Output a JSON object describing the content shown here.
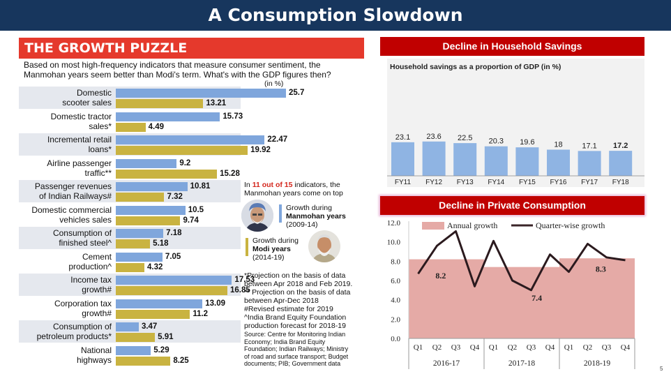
{
  "slide": {
    "title": "A Consumption Slowdown",
    "page_number": "5"
  },
  "colors": {
    "title_bg": "#17365d",
    "red_header": "#c00000",
    "puzzle_header": "#e5392c",
    "manmohan": "#7fa6dc",
    "modi": "#c9b341",
    "savings_bar": "#8fb4e3",
    "annual_area": "#e5aaa6"
  },
  "chart_data": [
    {
      "type": "bar",
      "title": "THE GROWTH PUZZLE",
      "subtitle": "Based on most high-frequency indicators that measure consumer sentiment, the Manmohan years seem better than Modi's term. What's with the GDP figures then?",
      "unit": "(in %)",
      "categories": [
        [
          "Domestic",
          "scooter sales"
        ],
        [
          "Domestic tractor",
          "sales*"
        ],
        [
          "Incremental retail",
          "loans*"
        ],
        [
          "Airline passenger",
          "traffic**"
        ],
        [
          "Passenger revenues",
          "of Indian Railways#"
        ],
        [
          "Domestic commercial",
          "vehicles sales"
        ],
        [
          "Consumption of",
          "finished steel^"
        ],
        [
          "Cement",
          "production^"
        ],
        [
          "Income tax",
          "growth#"
        ],
        [
          "Corporation tax",
          "growth#"
        ],
        [
          "Consumption of",
          "petroleum products*"
        ],
        [
          "National",
          "highways"
        ]
      ],
      "series": [
        {
          "name": "Growth during Manmohan years (2009-14)",
          "values": [
            25.7,
            15.73,
            22.47,
            9.2,
            10.81,
            10.5,
            7.18,
            7.05,
            17.53,
            13.09,
            3.47,
            5.29
          ],
          "labels": [
            "25.7",
            "15.73",
            "22.47",
            "9.2",
            "10.81",
            "10.5",
            "7.18",
            "7.05",
            "17.53",
            "13.09",
            "3.47",
            "5.29"
          ]
        },
        {
          "name": "Growth during Modi years (2014-19)",
          "values": [
            13.21,
            4.49,
            19.92,
            15.28,
            7.32,
            9.74,
            5.18,
            4.32,
            16.85,
            11.2,
            5.91,
            8.25
          ],
          "labels": [
            "13.21",
            "4.49",
            "19.92",
            "15.28",
            "7.32",
            "9.74",
            "5.18",
            "4.32",
            "16.85",
            "11.2",
            "5.91",
            "8.25"
          ]
        }
      ],
      "legend": [
        {
          "prefix": "Growth during",
          "name": "Manmohan years",
          "period": "(2009-14)"
        },
        {
          "prefix": "Growth during",
          "name": "Modi years",
          "period": "(2014-19)"
        }
      ],
      "callout": {
        "pre": "In ",
        "highlight": "11 out of 15",
        "post": " indicators, the",
        "line2": "Manmohan years come on top"
      },
      "footnotes": [
        "*Projection on the basis of data",
        "between Apr 2018 and Feb 2019.",
        "** Projection on the basis of data",
        "between Apr-Dec 2018",
        "#Revised estimate for 2019",
        "^India Brand Equity Foundation",
        "production forecast for 2018-19"
      ],
      "source": [
        "Source: Centre for Monitoring Indian",
        "Economy; India Brand Equity",
        "Foundation; Indian Railways; Ministry",
        "of road and surface transport; Budget",
        "documents; PIB; Government data"
      ],
      "xlim": [
        0,
        26
      ]
    },
    {
      "type": "bar",
      "header": "Decline in Household Savings",
      "title": "Household savings as a proportion of GDP (in %)",
      "categories": [
        "FY11",
        "FY12",
        "FY13",
        "FY14",
        "FY15",
        "FY16",
        "FY17",
        "FY18"
      ],
      "values": [
        23.1,
        23.6,
        22.5,
        20.3,
        19.6,
        18,
        17.1,
        17.2
      ],
      "labels": [
        "23.1",
        "23.6",
        "22.5",
        "20.3",
        "19.6",
        "18",
        "17.1",
        "17.2"
      ],
      "ylim": [
        0,
        24
      ]
    },
    {
      "type": "line",
      "header": "Decline in Private Consumption",
      "legend": [
        "Annual growth",
        "Quarter-wise growth"
      ],
      "quarters": [
        "Q1",
        "Q2",
        "Q3",
        "Q4",
        "Q1",
        "Q2",
        "Q3",
        "Q4",
        "Q1",
        "Q2",
        "Q3",
        "Q4"
      ],
      "years": [
        "2016-17",
        "2017-18",
        "2018-19"
      ],
      "series": [
        {
          "name": "Annual growth",
          "type": "area",
          "values": [
            8.2,
            7.4,
            8.3
          ],
          "labels": [
            "8.2",
            "7.4",
            "8.3"
          ]
        },
        {
          "name": "Quarter-wise growth",
          "type": "line",
          "values": [
            6.7,
            9.6,
            11.1,
            5.4,
            10.1,
            6.0,
            5.0,
            8.7,
            6.9,
            9.8,
            8.4,
            8.1
          ]
        }
      ],
      "yticks": [
        "0.0",
        "2.0",
        "4.0",
        "6.0",
        "8.0",
        "10.0",
        "12.0"
      ],
      "ylim": [
        0,
        12
      ]
    }
  ]
}
